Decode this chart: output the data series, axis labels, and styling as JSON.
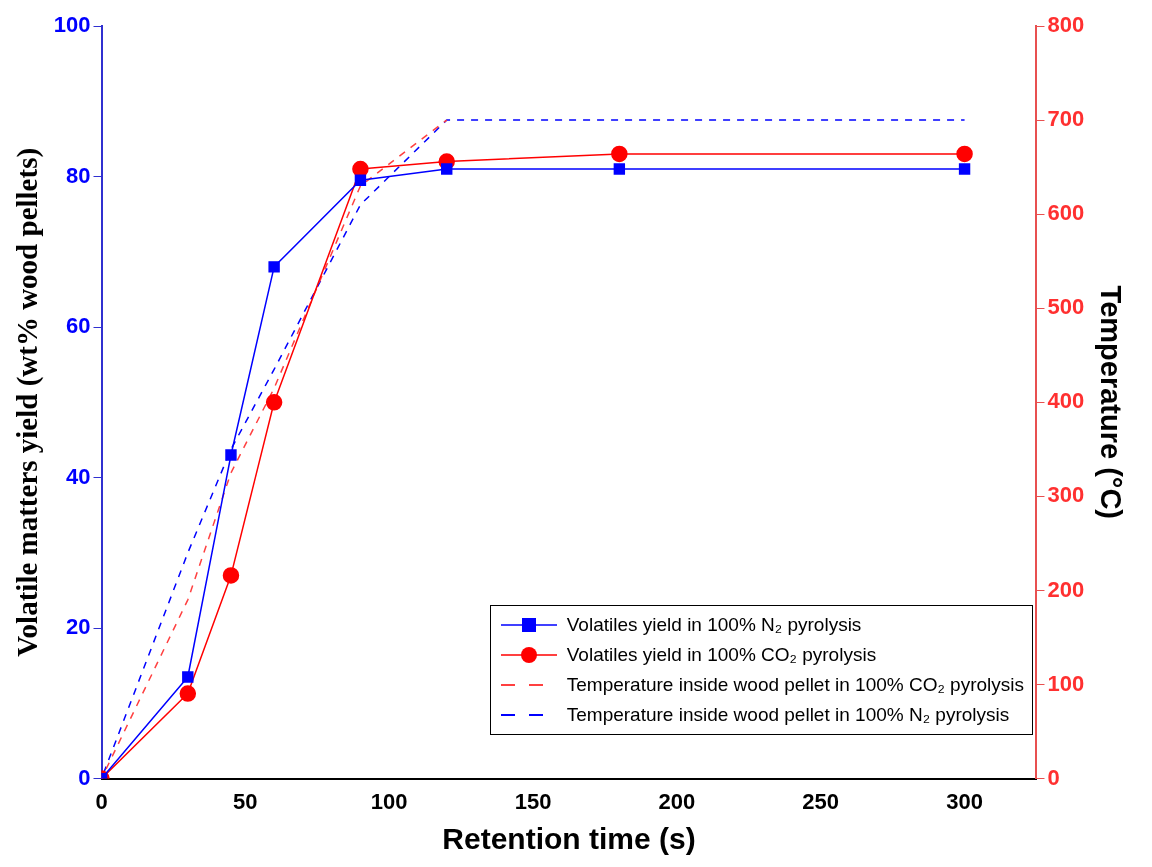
{
  "chart_data": {
    "type": "line",
    "xlabel": "Retention time (s)",
    "ylabel": "Volatile matters yield (wt% wood pellets)",
    "y2label": "Temperature (°C)",
    "x": [
      0,
      30,
      45,
      60,
      90,
      120,
      180,
      300
    ],
    "series": [
      {
        "name": "Volatiles yield in 100% N₂ pyrolysis",
        "color": "#0000ff",
        "marker": "square",
        "line_style": "solid",
        "values": [
          0,
          13.5,
          43,
          68,
          79.5,
          81,
          81,
          81
        ]
      },
      {
        "name": "Volatiles yield in 100% CO₂ pyrolysis",
        "color": "#ff0000",
        "marker": "circle",
        "line_style": "solid",
        "values": [
          0,
          11.3,
          27,
          50,
          81,
          82,
          83,
          83
        ]
      },
      {
        "name": "Temperature inside wood pellet in 100% CO₂ pyrolysis",
        "color": "#ff4040",
        "marker": "none",
        "line_style": "dashed",
        "axis": "y2",
        "values": [
          0,
          190,
          325,
          415,
          630,
          700,
          null,
          null
        ]
      },
      {
        "name": "Temperature inside wood pellet in 100% N₂ pyrolysis",
        "color": "#0000ff",
        "marker": "none",
        "line_style": "dashed",
        "axis": "y2",
        "values": [
          0,
          240,
          350,
          435,
          610,
          700,
          700,
          700
        ]
      }
    ],
    "xlim": [
      0,
      325
    ],
    "xticks": [
      0,
      50,
      100,
      150,
      200,
      250,
      300
    ],
    "ylim": [
      0,
      100
    ],
    "yticks": [
      0,
      20,
      40,
      60,
      80,
      100
    ],
    "y2lim": [
      0,
      800
    ],
    "y2ticks": [
      0,
      100,
      200,
      300,
      400,
      500,
      600,
      700,
      800
    ],
    "grid": false,
    "legend": "bottom right"
  }
}
